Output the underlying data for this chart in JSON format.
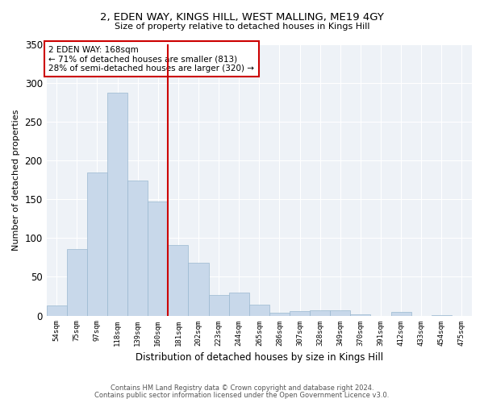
{
  "title": "2, EDEN WAY, KINGS HILL, WEST MALLING, ME19 4GY",
  "subtitle": "Size of property relative to detached houses in Kings Hill",
  "xlabel": "Distribution of detached houses by size in Kings Hill",
  "ylabel": "Number of detached properties",
  "categories": [
    "54sqm",
    "75sqm",
    "97sqm",
    "118sqm",
    "139sqm",
    "160sqm",
    "181sqm",
    "202sqm",
    "223sqm",
    "244sqm",
    "265sqm",
    "286sqm",
    "307sqm",
    "328sqm",
    "349sqm",
    "370sqm",
    "391sqm",
    "412sqm",
    "433sqm",
    "454sqm",
    "475sqm"
  ],
  "values": [
    13,
    86,
    185,
    288,
    174,
    147,
    91,
    68,
    27,
    30,
    14,
    4,
    6,
    7,
    7,
    2,
    0,
    5,
    0,
    1,
    0
  ],
  "bar_color": "#c8d8ea",
  "bar_edge_color": "#9ab8d0",
  "ref_line_label": "2 EDEN WAY: 168sqm",
  "annotation_line1": "← 71% of detached houses are smaller (813)",
  "annotation_line2": "28% of semi-detached houses are larger (320) →",
  "box_color": "#cc0000",
  "vline_color": "#cc0000",
  "ylim": [
    0,
    350
  ],
  "yticks": [
    0,
    50,
    100,
    150,
    200,
    250,
    300,
    350
  ],
  "bg_color": "#eef2f7",
  "footer1": "Contains HM Land Registry data © Crown copyright and database right 2024.",
  "footer2": "Contains public sector information licensed under the Open Government Licence v3.0."
}
